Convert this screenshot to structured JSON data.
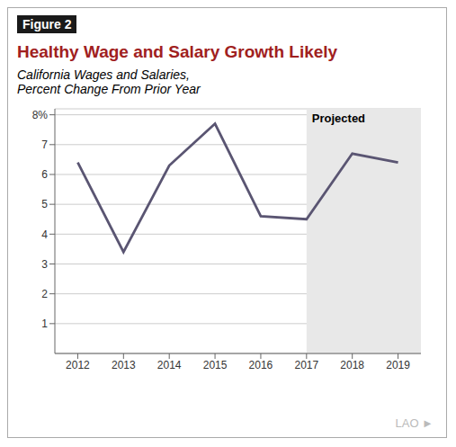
{
  "chart_data": {
    "type": "line",
    "figure_label": "Figure 2",
    "figure_label_color": "#ffffff",
    "figure_label_bg": "#1a1a1a",
    "title": "Healthy Wage and Salary Growth Likely",
    "title_color": "#a02020",
    "subtitle": [
      "California Wages and Salaries,",
      "Percent Change From Prior Year"
    ],
    "x": [
      2012,
      2013,
      2014,
      2015,
      2016,
      2017,
      2018,
      2019
    ],
    "values": [
      6.4,
      3.4,
      6.3,
      7.7,
      4.6,
      4.5,
      6.7,
      6.4
    ],
    "color": "#5a5572",
    "xlim": [
      2011.5,
      2019.5
    ],
    "xticks": [
      2012,
      2013,
      2014,
      2015,
      2016,
      2017,
      2018,
      2019
    ],
    "ylim": [
      0,
      8.2
    ],
    "yticks": [
      1,
      2,
      3,
      4,
      5,
      6,
      7,
      {
        "value": 8,
        "label": "8%"
      }
    ],
    "grid": true,
    "annotations": [
      {
        "text": "Projected",
        "x_start": 2017,
        "x_end": 2019.5,
        "color": "#e8e8e8"
      }
    ],
    "footer": "LAO ►"
  }
}
